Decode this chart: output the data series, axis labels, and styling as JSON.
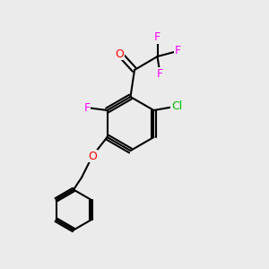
{
  "bg_color": "#ebebeb",
  "bond_color": "#000000",
  "bond_lw": 1.5,
  "atom_colors": {
    "O": "#ff0000",
    "F": "#ff00ff",
    "Cl": "#00bb00",
    "C": "#000000"
  },
  "font_size": 9,
  "font_size_small": 8
}
